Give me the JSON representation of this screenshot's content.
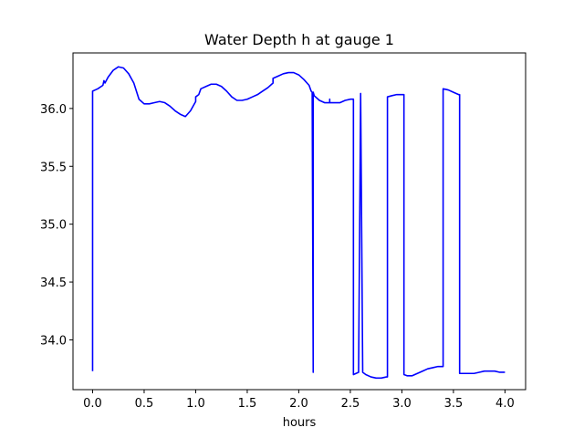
{
  "chart_data": {
    "type": "line",
    "title": "Water Depth h at gauge 1",
    "xlabel": "hours",
    "ylabel": "",
    "xlim": [
      -0.19,
      4.2
    ],
    "ylim": [
      33.57,
      36.48
    ],
    "xticks": [
      0.0,
      0.5,
      1.0,
      1.5,
      2.0,
      2.5,
      3.0,
      3.5,
      4.0
    ],
    "xtick_labels": [
      "0.0",
      "0.5",
      "1.0",
      "1.5",
      "2.0",
      "2.5",
      "3.0",
      "3.5",
      "4.0"
    ],
    "yticks": [
      34.0,
      34.5,
      35.0,
      35.5,
      36.0
    ],
    "ytick_labels": [
      "34.0",
      "34.5",
      "35.0",
      "35.5",
      "36.0"
    ],
    "grid": false,
    "colors": {
      "series": "#0000ff"
    },
    "series": [
      {
        "name": "",
        "x": [
          0.0,
          0.0,
          0.05,
          0.1,
          0.11,
          0.12,
          0.15,
          0.2,
          0.25,
          0.3,
          0.35,
          0.4,
          0.45,
          0.5,
          0.55,
          0.6,
          0.65,
          0.7,
          0.75,
          0.8,
          0.85,
          0.9,
          0.95,
          1.0,
          1.0,
          1.03,
          1.05,
          1.1,
          1.15,
          1.2,
          1.25,
          1.3,
          1.35,
          1.4,
          1.45,
          1.5,
          1.55,
          1.6,
          1.65,
          1.7,
          1.75,
          1.75,
          1.8,
          1.85,
          1.9,
          1.95,
          2.0,
          2.05,
          2.1,
          2.12,
          2.13,
          2.14,
          2.14,
          2.15,
          2.2,
          2.25,
          2.3,
          2.3,
          2.3,
          2.35,
          2.4,
          2.45,
          2.5,
          2.53,
          2.53,
          2.58,
          2.6,
          2.6,
          2.62,
          2.62,
          2.65,
          2.7,
          2.75,
          2.8,
          2.85,
          2.86,
          2.86,
          2.9,
          2.95,
          3.0,
          3.02,
          3.02,
          3.05,
          3.1,
          3.15,
          3.2,
          3.25,
          3.3,
          3.35,
          3.4,
          3.4,
          3.45,
          3.5,
          3.55,
          3.56,
          3.56,
          3.6,
          3.65,
          3.7,
          3.75,
          3.8,
          3.85,
          3.9,
          3.95,
          4.0
        ],
        "y": [
          33.73,
          36.15,
          36.17,
          36.2,
          36.24,
          36.22,
          36.27,
          36.33,
          36.36,
          36.35,
          36.3,
          36.22,
          36.08,
          36.04,
          36.04,
          36.05,
          36.06,
          36.05,
          36.02,
          35.98,
          35.95,
          35.93,
          35.98,
          36.06,
          36.1,
          36.12,
          36.17,
          36.19,
          36.21,
          36.21,
          36.19,
          36.15,
          36.1,
          36.07,
          36.07,
          36.08,
          36.1,
          36.12,
          36.15,
          36.18,
          36.22,
          36.26,
          36.28,
          36.3,
          36.31,
          36.31,
          36.29,
          36.25,
          36.2,
          36.15,
          36.14,
          33.72,
          36.14,
          36.11,
          36.07,
          36.05,
          36.05,
          36.08,
          36.05,
          36.05,
          36.05,
          36.07,
          36.08,
          36.08,
          33.7,
          33.72,
          36.13,
          36.12,
          33.72,
          33.72,
          33.7,
          33.68,
          33.67,
          33.67,
          33.68,
          33.68,
          36.1,
          36.11,
          36.12,
          36.12,
          36.12,
          33.7,
          33.69,
          33.69,
          33.71,
          33.73,
          33.75,
          33.76,
          33.77,
          33.77,
          36.17,
          36.16,
          36.14,
          36.12,
          36.12,
          33.71,
          33.71,
          33.71,
          33.71,
          33.72,
          33.73,
          33.73,
          33.73,
          33.72,
          33.72
        ]
      }
    ]
  }
}
